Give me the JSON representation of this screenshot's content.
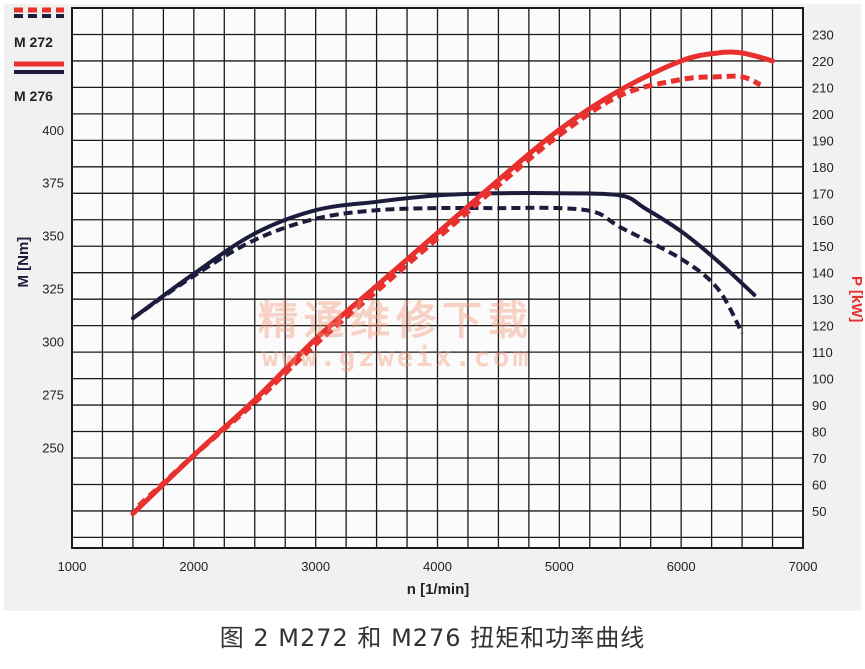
{
  "caption": "图 2 M272 和 M276 扭矩和功率曲线",
  "watermark": {
    "line1": "精通维修下载",
    "line2": "www.gzweix.com"
  },
  "colors": {
    "torque": "#1c1c3c",
    "power": "#e8312e",
    "grid": "#1a1a1a",
    "background": "#f1f1f1"
  },
  "chart_data": {
    "type": "line",
    "xlabel": "n [1/min]",
    "ylabel_left": "M [Nm]",
    "ylabel_right": "P [kW]",
    "xlim": [
      1000,
      7000
    ],
    "xticks": [
      "1000",
      "2000",
      "3000",
      "4000",
      "5000",
      "6000",
      "7000"
    ],
    "yticks_left": [
      "250",
      "275",
      "300",
      "325",
      "350",
      "375",
      "400"
    ],
    "yticks_right": [
      "50",
      "60",
      "70",
      "80",
      "90",
      "100",
      "110",
      "120",
      "130",
      "140",
      "150",
      "160",
      "170",
      "180",
      "190",
      "200",
      "210",
      "220",
      "230"
    ],
    "ylim_right": [
      36,
      240
    ],
    "ylim_left": [
      202.5,
      457.5
    ],
    "grid": true,
    "legend": {
      "placement": "top-left",
      "entries": [
        {
          "label": "M 272",
          "style": "dashed"
        },
        {
          "label": "M 276",
          "style": "solid"
        }
      ]
    },
    "series": [
      {
        "name": "M 272",
        "quantity": "torque",
        "axis": "left",
        "style": "dashed",
        "color": "#1c1c3c",
        "x": [
          1500,
          2000,
          2500,
          3000,
          3500,
          4000,
          4500,
          5000,
          5300,
          5500,
          6000,
          6300,
          6500
        ],
        "y": [
          311,
          331,
          348,
          358,
          362,
          363,
          363,
          363,
          361,
          354,
          339,
          325,
          304
        ]
      },
      {
        "name": "M 276",
        "quantity": "torque",
        "axis": "left",
        "style": "solid",
        "color": "#1c1c3c",
        "x": [
          1500,
          2000,
          2500,
          3000,
          3500,
          4000,
          4500,
          5000,
          5500,
          5700,
          6000,
          6300,
          6600
        ],
        "y": [
          311,
          332,
          351,
          362,
          366,
          369,
          370,
          370,
          369,
          363,
          352,
          338,
          322
        ]
      },
      {
        "name": "M 272",
        "quantity": "power",
        "axis": "right",
        "style": "dashed",
        "color": "#e8312e",
        "x": [
          1550,
          2000,
          2500,
          3000,
          3500,
          4000,
          4500,
          5000,
          5500,
          6000,
          6300,
          6500,
          6650
        ],
        "y": [
          52,
          71,
          91,
          113,
          133,
          153,
          173,
          192,
          207,
          213,
          214,
          214,
          211
        ]
      },
      {
        "name": "M 276",
        "quantity": "power",
        "axis": "right",
        "style": "solid",
        "color": "#e8312e",
        "x": [
          1500,
          2000,
          2500,
          3000,
          3500,
          4000,
          4500,
          5000,
          5500,
          6000,
          6300,
          6500,
          6750
        ],
        "y": [
          49,
          71,
          92,
          115,
          135,
          155,
          175,
          194,
          209,
          220,
          223,
          223,
          220
        ]
      }
    ]
  }
}
